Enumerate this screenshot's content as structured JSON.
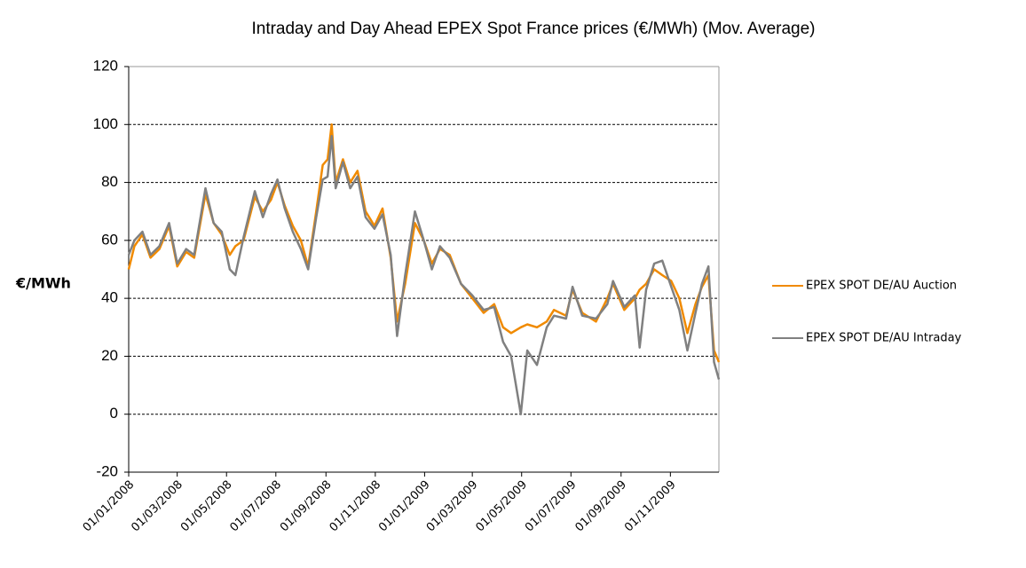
{
  "chart_data": {
    "type": "line",
    "title": "Intraday and Day Ahead EPEX Spot France prices  (€/MWh) (Mov. Average)",
    "y_label": "€/MWh",
    "x": [
      "2008-01-01",
      "2008-01-08",
      "2008-01-18",
      "2008-01-28",
      "2008-02-08",
      "2008-02-20",
      "2008-03-01",
      "2008-03-12",
      "2008-03-22",
      "2008-04-05",
      "2008-04-15",
      "2008-04-25",
      "2008-05-05",
      "2008-05-12",
      "2008-05-22",
      "2008-06-05",
      "2008-06-15",
      "2008-06-25",
      "2008-07-03",
      "2008-07-12",
      "2008-07-22",
      "2008-08-01",
      "2008-08-10",
      "2008-08-20",
      "2008-08-28",
      "2008-09-03",
      "2008-09-08",
      "2008-09-13",
      "2008-09-22",
      "2008-10-01",
      "2008-10-10",
      "2008-10-20",
      "2008-10-31",
      "2008-11-10",
      "2008-11-20",
      "2008-11-28",
      "2008-12-08",
      "2008-12-20",
      "2008-12-31",
      "2009-01-10",
      "2009-01-20",
      "2009-02-01",
      "2009-02-15",
      "2009-03-01",
      "2009-03-15",
      "2009-03-28",
      "2009-04-08",
      "2009-04-18",
      "2009-04-30",
      "2009-05-08",
      "2009-05-20",
      "2009-06-01",
      "2009-06-10",
      "2009-06-25",
      "2009-07-03",
      "2009-07-15",
      "2009-08-01",
      "2009-08-15",
      "2009-08-22",
      "2009-09-05",
      "2009-09-18",
      "2009-09-24",
      "2009-10-02",
      "2009-10-12",
      "2009-10-22",
      "2009-11-02",
      "2009-11-12",
      "2009-11-22",
      "2009-12-02",
      "2009-12-10",
      "2009-12-18",
      "2009-12-25",
      "2009-12-31"
    ],
    "series": [
      {
        "name": "EPEX SPOT DE/AU Auction",
        "color": "#f08a00",
        "values": [
          50,
          58,
          62,
          54,
          57,
          65,
          51,
          56,
          54,
          76,
          66,
          62,
          55,
          58,
          60,
          75,
          70,
          74,
          80,
          72,
          65,
          60,
          51,
          70,
          86,
          88,
          100,
          80,
          88,
          80,
          84,
          70,
          65,
          71,
          54,
          32,
          45,
          66,
          60,
          52,
          57,
          55,
          45,
          40,
          35,
          38,
          30,
          28,
          30,
          31,
          30,
          32,
          36,
          34,
          43,
          35,
          32,
          40,
          45,
          36,
          40,
          43,
          45,
          50,
          48,
          46,
          40,
          28,
          38,
          44,
          48,
          22,
          18
        ]
      },
      {
        "name": "EPEX SPOT DE/AU Intraday",
        "color": "#808080",
        "values": [
          55,
          60,
          63,
          55,
          58,
          66,
          52,
          57,
          55,
          78,
          66,
          63,
          50,
          48,
          61,
          77,
          68,
          76,
          81,
          71,
          63,
          57,
          50,
          68,
          81,
          82,
          96,
          78,
          87,
          78,
          82,
          68,
          64,
          69,
          55,
          27,
          48,
          70,
          60,
          50,
          58,
          54,
          45,
          41,
          36,
          37,
          25,
          20,
          0,
          22,
          17,
          30,
          34,
          33,
          44,
          34,
          33,
          38,
          46,
          37,
          41,
          23,
          43,
          52,
          53,
          44,
          36,
          22,
          35,
          45,
          51,
          18,
          12
        ]
      }
    ],
    "xlim": [
      "2008-01-01",
      "2009-12-31"
    ],
    "xticks": [
      {
        "value": "2008-01-01",
        "label": "01/01/2008"
      },
      {
        "value": "2008-03-01",
        "label": "01/03/2008"
      },
      {
        "value": "2008-05-01",
        "label": "01/05/2008"
      },
      {
        "value": "2008-07-01",
        "label": "01/07/2008"
      },
      {
        "value": "2008-09-01",
        "label": "01/09/2008"
      },
      {
        "value": "2008-11-01",
        "label": "01/11/2008"
      },
      {
        "value": "2009-01-01",
        "label": "01/01/2009"
      },
      {
        "value": "2009-03-01",
        "label": "01/03/2009"
      },
      {
        "value": "2009-05-01",
        "label": "01/05/2009"
      },
      {
        "value": "2009-07-01",
        "label": "01/07/2009"
      },
      {
        "value": "2009-09-01",
        "label": "01/09/2009"
      },
      {
        "value": "2009-11-01",
        "label": "01/11/2009"
      }
    ],
    "ylim": [
      -20,
      120
    ],
    "yticks": [
      -20,
      0,
      20,
      40,
      60,
      80,
      100,
      120
    ],
    "grid": true,
    "legend": "right"
  }
}
